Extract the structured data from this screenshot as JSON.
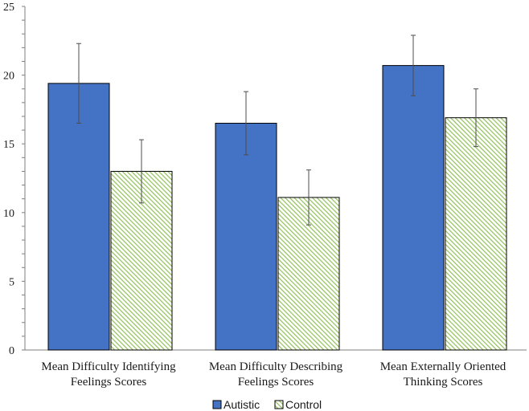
{
  "chart_data": {
    "type": "bar",
    "title": "",
    "xlabel": "",
    "ylabel": "",
    "ylim": [
      0,
      25
    ],
    "yticks": [
      0,
      5,
      10,
      15,
      20,
      25
    ],
    "minor_tick_step": 1,
    "grid": false,
    "legend_position": "bottom-center",
    "categories": [
      [
        "Mean Difficulty Identifying",
        "Feelings Scores"
      ],
      [
        "Mean Difficulty Describing",
        "Feelings Scores"
      ],
      [
        "Mean Externally Oriented",
        "Thinking Scores"
      ]
    ],
    "series": [
      {
        "name": "Autistic",
        "color": "#4472c4",
        "pattern": "solid",
        "values": [
          19.4,
          16.5,
          20.7
        ],
        "error": [
          2.9,
          2.3,
          2.2
        ]
      },
      {
        "name": "Control",
        "color": "#c5e0a5",
        "pattern": "diagonal-hatch",
        "values": [
          13.0,
          11.1,
          16.9
        ],
        "error": [
          2.3,
          2.0,
          2.1
        ]
      }
    ]
  }
}
